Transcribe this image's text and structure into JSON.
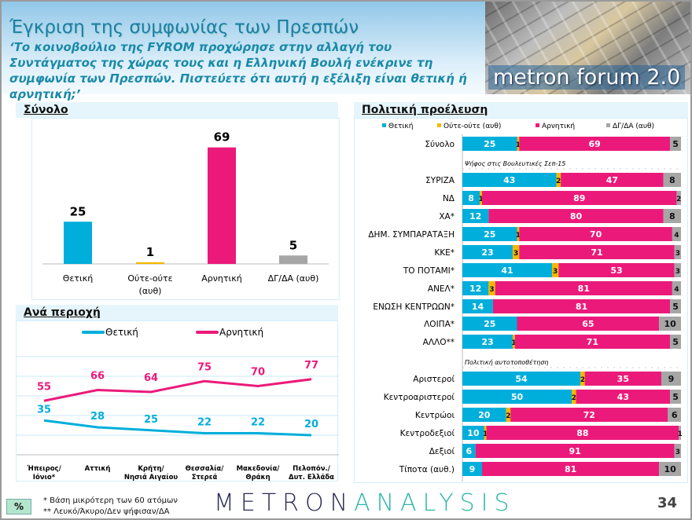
{
  "header": {
    "title": "Έγκριση της συμφωνίας των Πρεσπών",
    "question": "‘Το κοινοβούλιο της FYROM προχώρησε στην αλλαγή του Συντάγματος της χώρας τους και η Ελληνική Βουλή ενέκρινε τη συμφωνία των Πρεσπών. Πιστεύετε ότι αυτή η εξέλιξη είναι θετική ή αρνητική;’",
    "banner_text": "metron forum 2.0"
  },
  "colors": {
    "positive": "#00aedb",
    "neither": "#f5b800",
    "negative": "#eb1a7a",
    "dk": "#a6a6a6"
  },
  "chart_data": [
    {
      "type": "bar",
      "section_title": "Σύνολο",
      "categories": [
        "Θετική",
        "Ούτε-ούτε (αυθ)",
        "Αρνητική",
        "ΔΓ/ΔΑ (αυθ)"
      ],
      "values": [
        25,
        1,
        69,
        5
      ],
      "colors": [
        "#00aedb",
        "#f5b800",
        "#eb1a7a",
        "#a6a6a6"
      ],
      "ylim": [
        0,
        100
      ]
    },
    {
      "type": "line",
      "section_title": "Ανά περιοχή",
      "categories": [
        "Ήπειρος/ Ιόνιο*",
        "Αττική",
        "Κρήτη/ Νησιά Αιγαίου",
        "Θεσσαλία/ Στερεά",
        "Μακεδονία/ Θράκη",
        "Πελοπόν./ Δυτ. Ελλάδα"
      ],
      "series": [
        {
          "name": "Θετική",
          "color": "#00aedb",
          "values": [
            35,
            28,
            25,
            22,
            22,
            20
          ]
        },
        {
          "name": "Αρνητική",
          "color": "#eb1a7a",
          "values": [
            55,
            66,
            64,
            75,
            70,
            77
          ]
        }
      ],
      "ylim": [
        0,
        100
      ],
      "grid": true,
      "legend": "top"
    },
    {
      "type": "stacked-bar-horizontal",
      "section_title": "Πολιτική προέλευση",
      "legend": [
        "Θετική",
        "Ούτε-ούτε (αυθ)",
        "Αρνητική",
        "ΔΓ/ΔΑ (αυθ)"
      ],
      "groups": [
        {
          "subtitle": "",
          "rows": [
            {
              "label": "Σύνολο",
              "values": [
                25,
                1,
                69,
                5
              ]
            }
          ]
        },
        {
          "subtitle": "Ψήφος στις Βουλευτικές Σεπ-15",
          "rows": [
            {
              "label": "ΣΥΡΙΖΑ",
              "values": [
                43,
                2,
                47,
                8
              ]
            },
            {
              "label": "ΝΔ",
              "values": [
                8,
                1,
                89,
                2
              ]
            },
            {
              "label": "ΧΑ*",
              "values": [
                12,
                0,
                80,
                8
              ]
            },
            {
              "label": "ΔΗΜ. ΣΥΜΠΑΡΑΤΑΞΗ",
              "values": [
                25,
                1,
                70,
                4
              ]
            },
            {
              "label": "ΚΚΕ*",
              "values": [
                23,
                3,
                71,
                3
              ]
            },
            {
              "label": "ΤΟ ΠΟΤΑΜΙ*",
              "values": [
                41,
                3,
                53,
                3
              ]
            },
            {
              "label": "ΑΝΕΛ*",
              "values": [
                12,
                3,
                81,
                4
              ]
            },
            {
              "label": "ΕΝΩΣΗ ΚΕΝΤΡΩΩΝ*",
              "values": [
                14,
                0,
                81,
                5
              ]
            },
            {
              "label": "ΛΟΙΠΑ*",
              "values": [
                25,
                0,
                65,
                10
              ]
            },
            {
              "label": "ΑΛΛΟ**",
              "values": [
                23,
                1,
                71,
                5
              ]
            }
          ]
        },
        {
          "subtitle": "Πολιτική αυτοτοποθέτηση",
          "rows": [
            {
              "label": "Αριστεροί",
              "values": [
                54,
                2,
                35,
                9
              ]
            },
            {
              "label": "Κεντροαριστεροί",
              "values": [
                50,
                2,
                43,
                5
              ]
            },
            {
              "label": "Κεντρώοι",
              "values": [
                20,
                2,
                72,
                6
              ]
            },
            {
              "label": "Κεντροδεξιοί",
              "values": [
                10,
                1,
                88,
                1
              ]
            },
            {
              "label": "Δεξιοί",
              "values": [
                6,
                0,
                91,
                3
              ]
            },
            {
              "label": "Τίποτα (αυθ.)",
              "values": [
                9,
                0,
                81,
                10
              ]
            }
          ]
        }
      ]
    }
  ],
  "footer": {
    "unit": "%",
    "note1": "*  Βάση μικρότερη των 60 ατόμων",
    "note2": "** Λευκό/Άκυρο/Δεν ψήφισαν/ΔΑ",
    "logo_left": "METRON",
    "logo_right": "ANALYSIS",
    "page": "34"
  }
}
